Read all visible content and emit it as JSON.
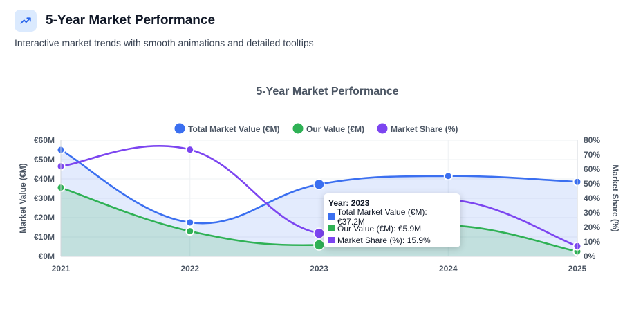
{
  "header": {
    "icon": "trending-up-icon",
    "title": "5-Year Market Performance",
    "subtitle": "Interactive market trends with smooth animations and detailed tooltips"
  },
  "chart_data": {
    "type": "line",
    "title": "5-Year Market Performance",
    "categories": [
      "2021",
      "2022",
      "2023",
      "2024",
      "2025"
    ],
    "series": [
      {
        "name": "Total Market Value (€M)",
        "axis": "left",
        "color": "#3b6ff0",
        "fill": true,
        "values": [
          55.0,
          17.5,
          37.2,
          41.5,
          38.5
        ]
      },
      {
        "name": "Our Value (€M)",
        "axis": "left",
        "color": "#2fb155",
        "fill": true,
        "values": [
          35.5,
          13.0,
          5.9,
          16.0,
          2.5
        ]
      },
      {
        "name": "Market Share (%)",
        "axis": "right",
        "color": "#7c45f0",
        "fill": false,
        "values": [
          62.0,
          73.5,
          15.9,
          39.0,
          7.0
        ]
      }
    ],
    "y_left": {
      "label": "Market Value (€M)",
      "ticks": [
        "€0M",
        "€10M",
        "€20M",
        "€30M",
        "€40M",
        "€50M",
        "€60M"
      ],
      "min": 0,
      "max": 60
    },
    "y_right": {
      "label": "Market Share (%)",
      "ticks": [
        "0%",
        "10%",
        "20%",
        "30%",
        "40%",
        "50%",
        "60%",
        "70%",
        "80%"
      ],
      "min": 0,
      "max": 80
    },
    "legend_position": "top-center",
    "grid": true,
    "tooltip": {
      "title": "Year: 2023",
      "lines": [
        "Total Market Value (€M): €37.2M",
        "Our Value (€M): €5.9M",
        "Market Share (%): 15.9%"
      ]
    }
  }
}
